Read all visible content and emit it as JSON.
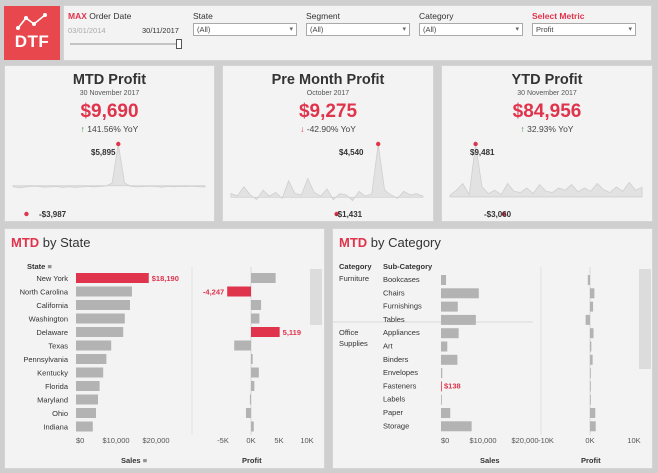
{
  "logo": {
    "text": "DTF"
  },
  "filters": {
    "order_date_label_prefix": "MAX",
    "order_date_label": "Order Date",
    "date_start": "03/01/2014",
    "date_end": "30/11/2017",
    "state": {
      "label": "State",
      "value": "(All)"
    },
    "segment": {
      "label": "Segment",
      "value": "(All)"
    },
    "category": {
      "label": "Category",
      "value": "(All)"
    },
    "metric": {
      "label": "Select Metric",
      "value": "Profit"
    }
  },
  "kpis": [
    {
      "title": "MTD Profit",
      "date": "30 November 2017",
      "value": "$9,690",
      "yoy_dir": "up",
      "yoy": "141.56% YoY",
      "max_label": "$5,895",
      "min_label": "-$3,987",
      "spark": [
        -120,
        -300,
        -180,
        -60,
        -90,
        -200,
        -160,
        -100,
        -250,
        -140,
        -220,
        -180,
        -90,
        -150,
        -120,
        -40,
        380,
        5895,
        420,
        -80,
        -160,
        -120,
        -60,
        -100,
        -200,
        -80,
        -150,
        -90,
        -120,
        -60,
        -140,
        -160
      ],
      "spark_min": -3987
    },
    {
      "title": "Pre Month Profit",
      "date": "October 2017",
      "value": "$9,275",
      "yoy_dir": "down",
      "yoy": "-42.90% YoY",
      "max_label": "$4,540",
      "min_label": "-$1,431",
      "spark": [
        300,
        120,
        900,
        200,
        -200,
        600,
        100,
        400,
        -100,
        1400,
        300,
        200,
        1600,
        400,
        100,
        700,
        -200,
        300,
        200,
        -300,
        500,
        100,
        300,
        4540,
        600,
        200,
        -100,
        500,
        200,
        300,
        100
      ],
      "spark_min": -1431
    },
    {
      "title": "YTD Profit",
      "date": "30 November 2017",
      "value": "$84,956",
      "yoy_dir": "up",
      "yoy": "32.93% YoY",
      "max_label": "$9,481",
      "min_label": "-$3,060",
      "spark": [
        300,
        1200,
        2400,
        400,
        9481,
        1800,
        600,
        1200,
        400,
        2400,
        1000,
        800,
        1600,
        600,
        2200,
        1000,
        800,
        1600,
        1200,
        2200,
        900,
        1600,
        1000,
        2400,
        1300,
        800,
        1800,
        1000,
        2600,
        1200,
        1700
      ],
      "spark_min": -3060
    }
  ],
  "state_panel": {
    "title_red": "MTD",
    "title_rest": " by State",
    "col_header": "State",
    "sales_label": "Sales",
    "profit_label": "Profit",
    "sales_ticks": [
      "$0",
      "$10,000",
      "$20,000"
    ],
    "profit_ticks": [
      "-5K",
      "0K",
      "5K",
      "10K"
    ]
  },
  "category_panel": {
    "title_red": "MTD",
    "title_rest": " by Category",
    "cat_header": "Category",
    "sub_header": "Sub-Category",
    "sales_label": "Sales",
    "profit_label": "Profit",
    "sales_ticks": [
      "$0",
      "$10,000",
      "$20,000"
    ],
    "profit_ticks": [
      "-10K",
      "0K",
      "10K"
    ],
    "categories": [
      {
        "name": "Furniture",
        "subs": [
          "Bookcases",
          "Chairs",
          "Furnishings",
          "Tables"
        ]
      },
      {
        "name": "Office Supplies",
        "subs": [
          "Appliances",
          "Art",
          "Binders",
          "Envelopes",
          "Fasteners",
          "Labels",
          "Paper",
          "Storage"
        ]
      }
    ]
  },
  "chart_data": [
    {
      "type": "bar",
      "title": "MTD by State - Sales",
      "categories": [
        "New York",
        "North Carolina",
        "California",
        "Washington",
        "Delaware",
        "Texas",
        "Pennsylvania",
        "Kentucky",
        "Florida",
        "Maryland",
        "Ohio",
        "Indiana"
      ],
      "values": [
        18190,
        14000,
        13500,
        12200,
        11800,
        8800,
        7600,
        6800,
        5900,
        5500,
        5000,
        4200
      ],
      "highlight": {
        "index": 0,
        "label": "$18,190"
      },
      "xlabel": "Sales",
      "xlim": [
        0,
        24000
      ]
    },
    {
      "type": "bar",
      "title": "MTD by State - Profit",
      "categories": [
        "New York",
        "North Carolina",
        "California",
        "Washington",
        "Delaware",
        "Texas",
        "Pennsylvania",
        "Kentucky",
        "Florida",
        "Maryland",
        "Ohio",
        "Indiana"
      ],
      "values": [
        4400,
        -4247,
        1800,
        1500,
        5119,
        -3000,
        300,
        1400,
        600,
        -200,
        -900,
        500
      ],
      "highlight": [
        {
          "index": 1,
          "label": "-4,247"
        },
        {
          "index": 4,
          "label": "5,119"
        }
      ],
      "xlabel": "Profit",
      "xlim": [
        -8000,
        10000
      ]
    },
    {
      "type": "bar",
      "title": "MTD by Category - Sales",
      "categories": [
        "Bookcases",
        "Chairs",
        "Furnishings",
        "Tables",
        "Appliances",
        "Art",
        "Binders",
        "Envelopes",
        "Fasteners",
        "Labels",
        "Paper",
        "Storage"
      ],
      "values": [
        1200,
        9000,
        4000,
        8300,
        4200,
        1500,
        3900,
        300,
        138,
        200,
        2200,
        7300
      ],
      "highlight": {
        "index": 8,
        "label": "$138"
      },
      "xlabel": "Sales",
      "xlim": [
        0,
        24000
      ]
    },
    {
      "type": "bar",
      "title": "MTD by Category - Profit",
      "categories": [
        "Bookcases",
        "Chairs",
        "Furnishings",
        "Tables",
        "Appliances",
        "Art",
        "Binders",
        "Envelopes",
        "Fasteners",
        "Labels",
        "Paper",
        "Storage"
      ],
      "values": [
        -500,
        1000,
        700,
        -1000,
        800,
        300,
        600,
        100,
        50,
        100,
        1200,
        1300
      ],
      "xlabel": "Profit",
      "xlim": [
        -13000,
        12000
      ]
    }
  ],
  "colors": {
    "accent": "#e0334c",
    "bar": "#b3b3b3",
    "logo_bg": "#e8484d"
  }
}
